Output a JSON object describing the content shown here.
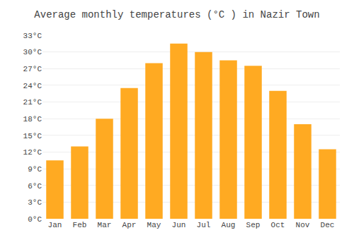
{
  "chart_data": {
    "type": "bar",
    "title": "Average monthly temperatures (°C ) in Nazir Town",
    "categories": [
      "Jan",
      "Feb",
      "Mar",
      "Apr",
      "May",
      "Jun",
      "Jul",
      "Aug",
      "Sep",
      "Oct",
      "Nov",
      "Dec"
    ],
    "values": [
      10.5,
      13.0,
      18.0,
      23.5,
      28.0,
      31.5,
      30.0,
      28.5,
      27.5,
      23.0,
      17.0,
      12.5
    ],
    "color": "#FFAA22",
    "ylim": [
      0,
      33
    ],
    "yticks": [
      {
        "value": 0,
        "label": "0°C"
      },
      {
        "value": 3,
        "label": "3°C"
      },
      {
        "value": 6,
        "label": "6°C"
      },
      {
        "value": 9,
        "label": "9°C"
      },
      {
        "value": 12,
        "label": "12°C"
      },
      {
        "value": 15,
        "label": "15°C"
      },
      {
        "value": 18,
        "label": "18°C"
      },
      {
        "value": 21,
        "label": "21°C"
      },
      {
        "value": 24,
        "label": "24°C"
      },
      {
        "value": 27,
        "label": "27°C"
      },
      {
        "value": 30,
        "label": "30°C"
      },
      {
        "value": 33,
        "label": "33°C"
      }
    ],
    "grid": true
  }
}
